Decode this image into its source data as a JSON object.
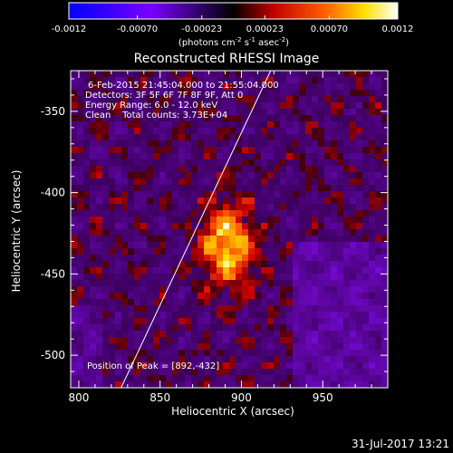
{
  "chart_data": {
    "type": "heatmap",
    "title": "Reconstructed RHESSI Image",
    "xlabel": "Heliocentric X (arcsec)",
    "ylabel": "Heliocentric Y (arcsec)",
    "xlim": [
      795,
      990
    ],
    "ylim": [
      -520,
      -325
    ],
    "xticks": [
      "800",
      "850",
      "900",
      "950"
    ],
    "xtick_values": [
      800,
      850,
      900,
      950
    ],
    "yticks": [
      "-350",
      "-400",
      "-450",
      "-500"
    ],
    "ytick_values": [
      -350,
      -400,
      -450,
      -500
    ],
    "colorbar": {
      "range": [
        -0.0012,
        0.0012
      ],
      "ticks": [
        "-0.0012",
        "-0.00070",
        "-0.00023",
        "0.00023",
        "0.00070",
        "0.0012"
      ],
      "tick_values": [
        -0.0012,
        -0.0007,
        -0.00023,
        0.00023,
        0.0007,
        0.0012
      ],
      "units": "(photons cm",
      "units_exp1": "-2",
      "units_mid": " s",
      "units_exp2": "-1",
      "units_end": " asec",
      "units_exp3": "-2",
      "units_close": ")",
      "colors": [
        "#0000ff",
        "#ff0000",
        "#ffff00",
        "#ffffff"
      ]
    },
    "annotations": [
      "6-Feb-2015 21:45:04.000 to 21:55:04.000",
      "Detectors: 3F 5F 6F 7F 8F 9F, Att 0",
      "Energy Range: 6.0 - 12.0 keV",
      "Clean    Total counts: 3.73E+04"
    ],
    "peak_label": "Position of Peak = [892,-432]",
    "peak": [
      892,
      -432
    ],
    "limb_line": [
      [
        826,
        -520
      ],
      [
        918,
        -325
      ]
    ],
    "grid": false
  },
  "timestamp": "31-Jul-2017 13:21"
}
